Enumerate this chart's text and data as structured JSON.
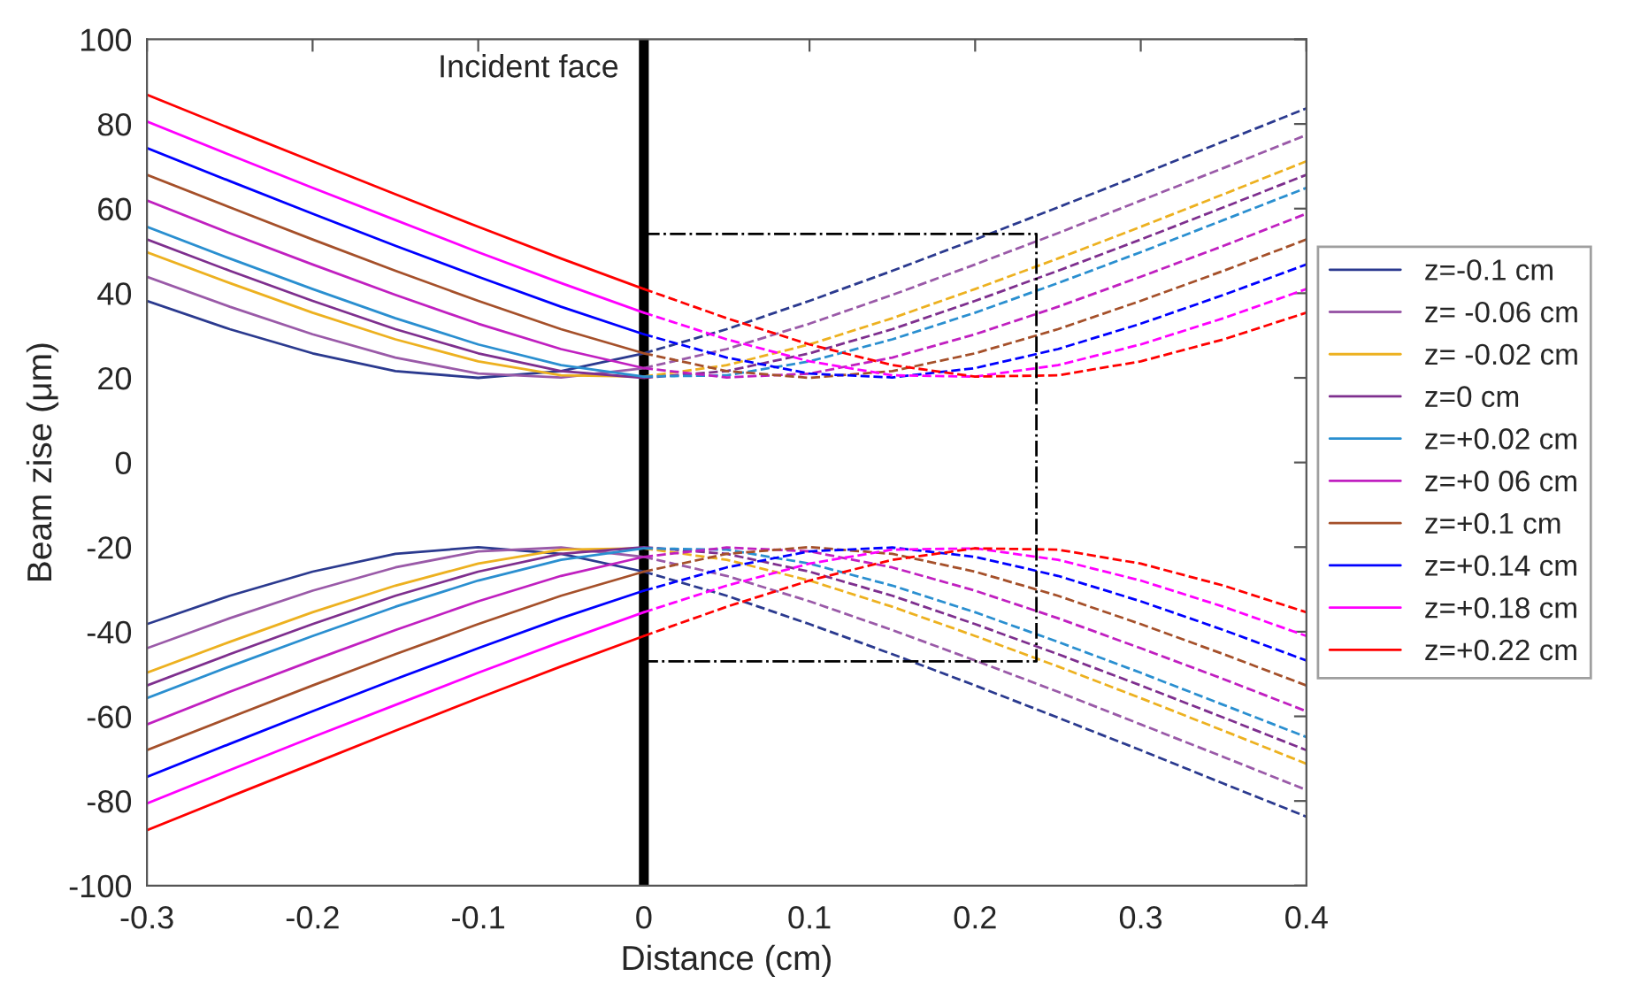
{
  "chart_data": {
    "type": "line",
    "xlabel": "Distance (cm)",
    "ylabel": "Beam zise (μm)",
    "x": [
      -0.3,
      -0.25,
      -0.2,
      -0.15,
      -0.1,
      -0.05,
      0
    ],
    "xlim": [
      -0.3,
      0.4
    ],
    "xticks": [
      -0.3,
      -0.2,
      -0.1,
      0,
      0.1,
      0.2,
      0.3,
      0.4
    ],
    "ylim": [
      -100,
      100
    ],
    "yticks": [
      -100,
      -80,
      -60,
      -40,
      -20,
      0,
      20,
      40,
      60,
      80,
      100
    ],
    "grid": false,
    "legend": "right",
    "marker": "none",
    "line_style": "solid",
    "ref_lines": [
      {
        "axis": "x",
        "value": 0,
        "label": "Incident face",
        "color": "#000000"
      }
    ],
    "series": [
      {
        "name": "z=-0.1 cm",
        "color": "#2b3a8f",
        "values": [
          38.2,
          31.5,
          25.8,
          21.6,
          20.0,
          21.6,
          25.8
        ]
      },
      {
        "color": "#2b3a8f",
        "values": [
          -38.2,
          -31.5,
          -25.8,
          -21.6,
          -20.0,
          -21.6,
          -25.8
        ]
      },
      {
        "color": "#2b3a8f",
        "line_style": "dashed",
        "x": [
          0,
          0.05,
          0.1,
          0.15,
          0.2,
          0.25,
          0.3,
          0.35,
          0.4
        ],
        "values": [
          25.8,
          31.5,
          38.2,
          45.3,
          52.7,
          60.3,
          68.0,
          75.9,
          83.7
        ]
      },
      {
        "color": "#2b3a8f",
        "line_style": "dashed",
        "x": [
          0,
          0.05,
          0.1,
          0.15,
          0.2,
          0.25,
          0.3,
          0.35,
          0.4
        ],
        "values": [
          -25.8,
          -31.5,
          -38.2,
          -45.3,
          -52.7,
          -60.3,
          -68.0,
          -75.9,
          -83.7
        ]
      },
      {
        "name": "z= -0.06 cm",
        "color": "#9a5aa8",
        "values": [
          43.9,
          36.8,
          30.3,
          24.8,
          21.0,
          20.1,
          22.3
        ]
      },
      {
        "color": "#9a5aa8",
        "values": [
          -43.9,
          -36.8,
          -30.3,
          -24.8,
          -21.0,
          -20.1,
          -22.3
        ]
      },
      {
        "color": "#9a5aa8",
        "line_style": "dashed",
        "x": [
          0,
          0.05,
          0.1,
          0.15,
          0.2,
          0.25,
          0.3,
          0.35,
          0.4
        ],
        "values": [
          22.3,
          26.8,
          32.8,
          39.6,
          46.8,
          54.2,
          61.9,
          69.6,
          77.4
        ]
      },
      {
        "color": "#9a5aa8",
        "line_style": "dashed",
        "x": [
          0,
          0.05,
          0.1,
          0.15,
          0.2,
          0.25,
          0.3,
          0.35,
          0.4
        ],
        "values": [
          -22.3,
          -26.8,
          -32.8,
          -39.6,
          -46.8,
          -54.2,
          -61.9,
          -69.6,
          -77.4
        ]
      },
      {
        "name": "z= -0.02 cm",
        "color": "#edb120",
        "values": [
          49.7,
          42.4,
          35.4,
          29.1,
          23.9,
          20.6,
          20.3
        ]
      },
      {
        "color": "#edb120",
        "values": [
          -49.7,
          -42.4,
          -35.4,
          -29.1,
          -23.9,
          -20.6,
          -20.3
        ]
      },
      {
        "color": "#edb120",
        "line_style": "dashed",
        "x": [
          0,
          0.05,
          0.1,
          0.15,
          0.2,
          0.25,
          0.3,
          0.35,
          0.4
        ],
        "values": [
          20.3,
          23.0,
          27.9,
          34.1,
          41.0,
          48.2,
          55.7,
          63.4,
          71.2
        ]
      },
      {
        "color": "#edb120",
        "line_style": "dashed",
        "x": [
          0,
          0.05,
          0.1,
          0.15,
          0.2,
          0.25,
          0.3,
          0.35,
          0.4
        ],
        "values": [
          -20.3,
          -23.0,
          -27.9,
          -34.1,
          -41.0,
          -48.2,
          -55.7,
          -63.4,
          -71.2
        ]
      },
      {
        "name": "z=0 cm",
        "color": "#7e2f8e",
        "values": [
          52.7,
          45.3,
          38.2,
          31.5,
          25.8,
          21.6,
          20.0
        ]
      },
      {
        "color": "#7e2f8e",
        "values": [
          -52.7,
          -45.3,
          -38.2,
          -31.5,
          -25.8,
          -21.6,
          -20.0
        ]
      },
      {
        "color": "#7e2f8e",
        "line_style": "dashed",
        "x": [
          0,
          0.05,
          0.1,
          0.15,
          0.2,
          0.25,
          0.3,
          0.35,
          0.4
        ],
        "values": [
          20.0,
          21.6,
          25.8,
          31.5,
          38.2,
          45.3,
          52.7,
          60.3,
          68.0
        ]
      },
      {
        "color": "#7e2f8e",
        "line_style": "dashed",
        "x": [
          0,
          0.05,
          0.1,
          0.15,
          0.2,
          0.25,
          0.3,
          0.35,
          0.4
        ],
        "values": [
          -20.0,
          -21.6,
          -25.8,
          -31.5,
          -38.2,
          -45.3,
          -52.7,
          -60.3,
          -68.0
        ]
      },
      {
        "name": "z=+0.02 cm",
        "color": "#2a8fd0",
        "values": [
          55.7,
          48.2,
          41.0,
          34.1,
          27.9,
          23.0,
          20.3
        ]
      },
      {
        "color": "#2a8fd0",
        "values": [
          -55.7,
          -48.2,
          -41.0,
          -34.1,
          -27.9,
          -23.0,
          -20.3
        ]
      },
      {
        "color": "#2a8fd0",
        "line_style": "dashed",
        "x": [
          0,
          0.05,
          0.1,
          0.15,
          0.2,
          0.25,
          0.3,
          0.35,
          0.4
        ],
        "values": [
          20.3,
          20.6,
          23.9,
          29.1,
          35.4,
          42.4,
          49.7,
          57.3,
          64.9
        ]
      },
      {
        "color": "#2a8fd0",
        "line_style": "dashed",
        "x": [
          0,
          0.05,
          0.1,
          0.15,
          0.2,
          0.25,
          0.3,
          0.35,
          0.4
        ],
        "values": [
          -20.3,
          -20.6,
          -23.9,
          -29.1,
          -35.4,
          -42.4,
          -49.7,
          -57.3,
          -64.9
        ]
      },
      {
        "name": "z=+0 06 cm",
        "color": "#c020c0",
        "values": [
          61.9,
          54.2,
          46.8,
          39.6,
          32.8,
          26.8,
          22.3
        ]
      },
      {
        "color": "#c020c0",
        "values": [
          -61.9,
          -54.2,
          -46.8,
          -39.6,
          -32.8,
          -26.8,
          -22.3
        ]
      },
      {
        "color": "#c020c0",
        "line_style": "dashed",
        "x": [
          0,
          0.05,
          0.1,
          0.15,
          0.2,
          0.25,
          0.3,
          0.35,
          0.4
        ],
        "values": [
          22.3,
          20.1,
          21.0,
          24.8,
          30.3,
          36.8,
          43.9,
          51.2,
          58.8
        ]
      },
      {
        "color": "#c020c0",
        "line_style": "dashed",
        "x": [
          0,
          0.05,
          0.1,
          0.15,
          0.2,
          0.25,
          0.3,
          0.35,
          0.4
        ],
        "values": [
          -22.3,
          -20.1,
          -21.0,
          -24.8,
          -30.3,
          -36.8,
          -43.9,
          -51.2,
          -58.8
        ]
      },
      {
        "name": "z=+0.1 cm",
        "color": "#a5502a",
        "values": [
          68.0,
          60.3,
          52.7,
          45.3,
          38.2,
          31.5,
          25.8
        ]
      },
      {
        "color": "#a5502a",
        "values": [
          -68.0,
          -60.3,
          -52.7,
          -45.3,
          -38.2,
          -31.5,
          -25.8
        ]
      },
      {
        "color": "#a5502a",
        "line_style": "dashed",
        "x": [
          0,
          0.05,
          0.1,
          0.15,
          0.2,
          0.25,
          0.3,
          0.35,
          0.4
        ],
        "values": [
          25.8,
          21.6,
          20.0,
          21.6,
          25.8,
          31.5,
          38.2,
          45.3,
          52.7
        ]
      },
      {
        "color": "#a5502a",
        "line_style": "dashed",
        "x": [
          0,
          0.05,
          0.1,
          0.15,
          0.2,
          0.25,
          0.3,
          0.35,
          0.4
        ],
        "values": [
          -25.8,
          -21.6,
          -20.0,
          -21.6,
          -25.8,
          -31.5,
          -38.2,
          -45.3,
          -52.7
        ]
      },
      {
        "name": "z=+0.14 cm",
        "color": "#0000ff",
        "values": [
          74.3,
          66.5,
          58.8,
          51.2,
          43.9,
          36.8,
          30.3
        ]
      },
      {
        "color": "#0000ff",
        "values": [
          -74.3,
          -66.5,
          -58.8,
          -51.2,
          -43.9,
          -36.8,
          -30.3
        ]
      },
      {
        "color": "#0000ff",
        "line_style": "dashed",
        "x": [
          0,
          0.05,
          0.1,
          0.15,
          0.2,
          0.25,
          0.3,
          0.35,
          0.4
        ],
        "values": [
          30.3,
          24.8,
          21.0,
          20.1,
          22.3,
          26.8,
          32.8,
          39.6,
          46.8
        ]
      },
      {
        "color": "#0000ff",
        "line_style": "dashed",
        "x": [
          0,
          0.05,
          0.1,
          0.15,
          0.2,
          0.25,
          0.3,
          0.35,
          0.4
        ],
        "values": [
          -30.3,
          -24.8,
          -21.0,
          -20.1,
          -22.3,
          -26.8,
          -32.8,
          -39.6,
          -46.8
        ]
      },
      {
        "name": "z=+0.18 cm",
        "color": "#ff00ff",
        "values": [
          80.6,
          72.7,
          64.9,
          57.3,
          49.7,
          42.4,
          35.4
        ]
      },
      {
        "color": "#ff00ff",
        "values": [
          -80.6,
          -72.7,
          -64.9,
          -57.3,
          -49.7,
          -42.4,
          -35.4
        ]
      },
      {
        "color": "#ff00ff",
        "line_style": "dashed",
        "x": [
          0,
          0.05,
          0.1,
          0.15,
          0.2,
          0.25,
          0.3,
          0.35,
          0.4
        ],
        "values": [
          35.4,
          29.1,
          23.9,
          20.6,
          20.3,
          23.0,
          27.9,
          34.1,
          41.0
        ]
      },
      {
        "color": "#ff00ff",
        "line_style": "dashed",
        "x": [
          0,
          0.05,
          0.1,
          0.15,
          0.2,
          0.25,
          0.3,
          0.35,
          0.4
        ],
        "values": [
          -35.4,
          -29.1,
          -23.9,
          -20.6,
          -20.3,
          -23.0,
          -27.9,
          -34.1,
          -41.0
        ]
      },
      {
        "name": "z=+0.22 cm",
        "color": "#ff0000",
        "values": [
          86.9,
          79.0,
          71.2,
          63.4,
          55.7,
          48.2,
          41.0
        ]
      },
      {
        "color": "#ff0000",
        "values": [
          -86.9,
          -79.0,
          -71.2,
          -63.4,
          -55.7,
          -48.2,
          -41.0
        ]
      },
      {
        "color": "#ff0000",
        "line_style": "dashed",
        "x": [
          0,
          0.05,
          0.1,
          0.15,
          0.2,
          0.25,
          0.3,
          0.35,
          0.4
        ],
        "values": [
          41.0,
          34.1,
          27.9,
          23.0,
          20.3,
          20.6,
          23.9,
          29.1,
          35.4
        ]
      },
      {
        "color": "#ff0000",
        "line_style": "dashed",
        "x": [
          0,
          0.05,
          0.1,
          0.15,
          0.2,
          0.25,
          0.3,
          0.35,
          0.4
        ],
        "values": [
          -41.0,
          -34.1,
          -27.9,
          -23.0,
          -20.3,
          -20.6,
          -23.9,
          -29.1,
          -35.4
        ]
      },
      {
        "color": "#000000",
        "line_style": "dashdot",
        "x": [
          0,
          0.237,
          0.237,
          0
        ],
        "values": [
          54,
          54,
          -47,
          -47
        ]
      }
    ]
  }
}
